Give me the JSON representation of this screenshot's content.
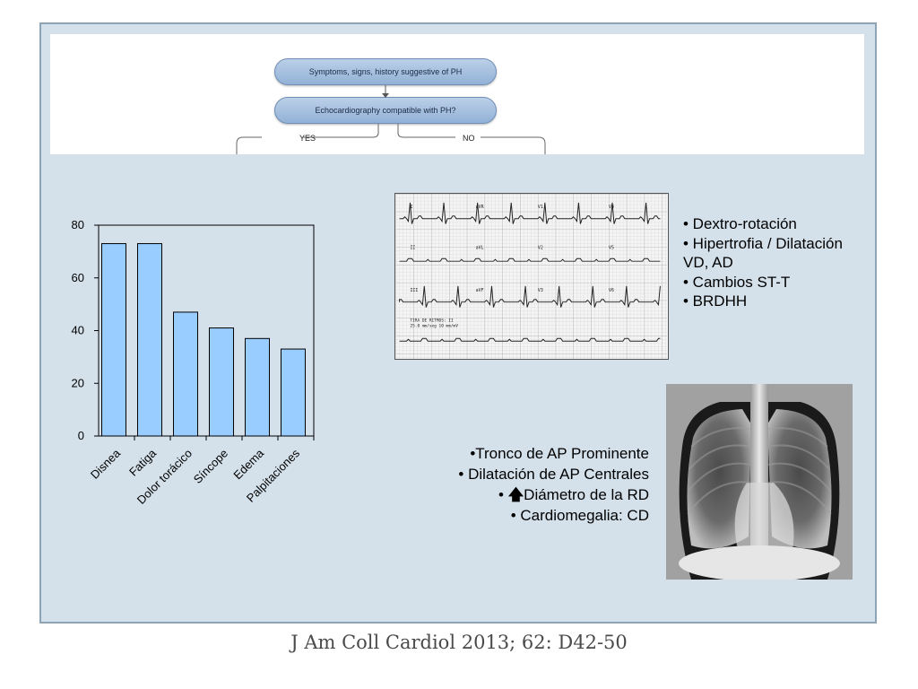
{
  "flowchart": {
    "box1": "Symptoms, signs, history suggestive of PH",
    "box2": "Echocardiography compatible with PH?",
    "yes_label": "YES",
    "no_label": "NO"
  },
  "chart_data": {
    "type": "bar",
    "categories": [
      "Disnea",
      "Fatiga",
      "Dolor torácico",
      "Síncope",
      "Edema",
      "Palpitaciones"
    ],
    "values": [
      73,
      73,
      47,
      41,
      37,
      33
    ],
    "ylim": [
      0,
      80
    ],
    "yticks": [
      0,
      20,
      40,
      60,
      80
    ],
    "grid": false,
    "bar_color": "#99ccff",
    "title": "",
    "xlabel": "",
    "ylabel": ""
  },
  "ecg_findings": {
    "items": [
      "• Dextro-rotación",
      "• Hipertrofia / Dilatación VD, AD",
      "• Cambios ST-T",
      "• BRDHH"
    ]
  },
  "xray_findings": {
    "line1": "•Tronco de AP Prominente",
    "line2": "• Dilatación de AP Centrales",
    "line3_prefix": "• ",
    "line3_arrow": "🡅",
    "line3_text": "Diámetro de la RD",
    "line4": "• Cardiomegalia: CD"
  },
  "ecg_image": {
    "lead_labels": [
      "I",
      "aVR",
      "V1",
      "V4",
      "II",
      "aVL",
      "V2",
      "V5",
      "III",
      "aVF",
      "V3",
      "V6"
    ],
    "rhythm_label": "TIRA DE RITMOS: II",
    "speed_label": "25.0 mm/seg 10 mm/mV"
  },
  "citation": "J Am Coll Cardiol 2013; 62: D42-50"
}
